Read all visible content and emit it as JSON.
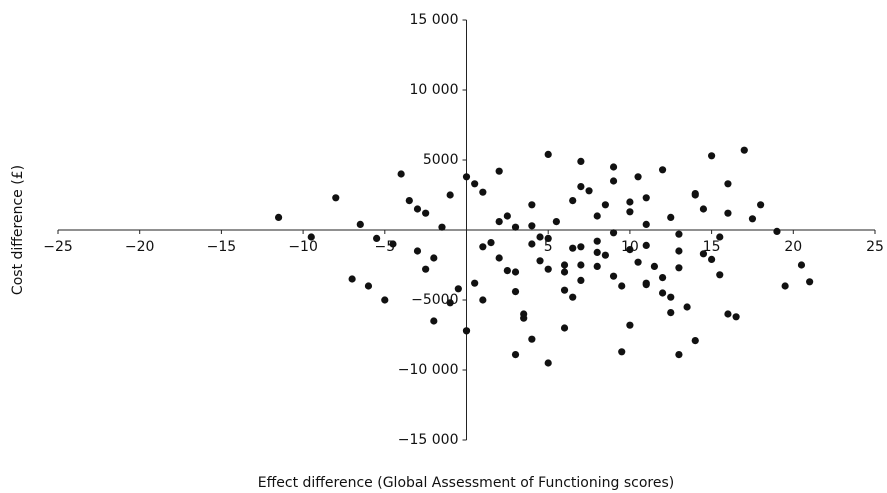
{
  "chart_data": {
    "type": "scatter",
    "x_label": "Effect difference (Global Assessment of Functioning scores)",
    "y_label": "Cost difference (£)",
    "color": "#111111",
    "xlim": [
      -25,
      25
    ],
    "ylim": [
      -15000,
      15000
    ],
    "xticks": [
      {
        "value": -25,
        "label": "−25"
      },
      {
        "value": -20,
        "label": "−20"
      },
      {
        "value": -15,
        "label": "−15"
      },
      {
        "value": -10,
        "label": "−10"
      },
      {
        "value": -5,
        "label": "−5"
      },
      5,
      10,
      15,
      20,
      25
    ],
    "yticks": [
      {
        "value": -15000,
        "label": "−15 000"
      },
      {
        "value": -10000,
        "label": "−10 000"
      },
      {
        "value": -5000,
        "label": "−5000"
      },
      5000,
      {
        "value": 10000,
        "label": "10 000"
      },
      {
        "value": 15000,
        "label": "15 000"
      }
    ],
    "x": [
      -11.5,
      -8,
      -6.5,
      -5.5,
      -4,
      -3,
      -2,
      -1,
      0,
      1,
      2,
      3,
      4,
      5,
      6,
      7,
      8,
      9,
      10,
      11,
      12,
      13,
      14,
      15,
      16,
      17,
      18,
      19.5,
      21,
      -9.5,
      -7,
      -5,
      -3.5,
      -2.5,
      -1.5,
      -0.5,
      0.5,
      1.5,
      2.5,
      3.5,
      4.5,
      5.5,
      6.5,
      7.5,
      8.5,
      9.5,
      10.5,
      11.5,
      12.5,
      13.5,
      14.5,
      15.5,
      16.5,
      17.5,
      19,
      20.5,
      -4.5,
      -2,
      0,
      2,
      4,
      6,
      8,
      10,
      12,
      14,
      16,
      -1,
      1,
      3,
      5,
      7,
      9,
      11,
      13,
      15,
      -3,
      0.5,
      3.5,
      6.5,
      9.5,
      12.5,
      15.5,
      2,
      4,
      6,
      8,
      10,
      12,
      14,
      1,
      3,
      5,
      7,
      9,
      11,
      13,
      -6,
      -2.5,
      0,
      2.5,
      4.5,
      6.5,
      8.5,
      10.5,
      12.5,
      14.5,
      16,
      5,
      7,
      9,
      11,
      3,
      6,
      8,
      10,
      13,
      4,
      7,
      11
    ],
    "values": [
      900,
      2300,
      400,
      -600,
      4000,
      1500,
      -2000,
      2500,
      3800,
      -1200,
      4200,
      -3000,
      1800,
      5400,
      -2500,
      3100,
      -800,
      4500,
      2000,
      -3800,
      4300,
      -1500,
      2600,
      5300,
      1200,
      5700,
      1800,
      -4000,
      -3700,
      -500,
      -3500,
      -5000,
      2100,
      -2800,
      200,
      -4200,
      3300,
      -900,
      1000,
      -6000,
      -2200,
      600,
      -4800,
      2800,
      -1800,
      -8700,
      3800,
      -2600,
      900,
      -5500,
      1500,
      -3200,
      -6200,
      800,
      -100,
      -2500,
      -1000,
      -6500,
      -7200,
      600,
      -7800,
      -4300,
      -1600,
      -6800,
      -3400,
      -7900,
      3300,
      -5200,
      2700,
      -8900,
      -9500,
      4900,
      -200,
      2300,
      -8900,
      -2100,
      -1500,
      -3800,
      -6300,
      2100,
      -4000,
      -5900,
      -500,
      -2000,
      -1000,
      -3000,
      1000,
      -1400,
      -4500,
      2500,
      -5000,
      200,
      -2800,
      -3600,
      3500,
      -1100,
      -300,
      -4000,
      1200,
      -7200,
      -2900,
      -500,
      -1300,
      1800,
      -2300,
      -4800,
      -1700,
      -6000,
      -600,
      -1200,
      -3300,
      400,
      -4400,
      -7000,
      -2600,
      1300,
      -2700,
      300,
      -2500,
      -3900
    ]
  }
}
